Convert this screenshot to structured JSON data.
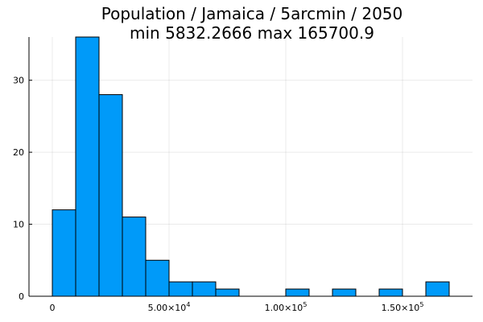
{
  "chart_data": {
    "type": "bar",
    "title": "Population / Jamaica / 5arcmin / 2050",
    "subtitle": "min 5832.2666  max 165700.9",
    "xlabel": "",
    "ylabel": "",
    "bin_width": 10000,
    "bins": [
      {
        "start": 0,
        "end": 10000,
        "count": 12
      },
      {
        "start": 10000,
        "end": 20000,
        "count": 36
      },
      {
        "start": 20000,
        "end": 30000,
        "count": 28
      },
      {
        "start": 30000,
        "end": 40000,
        "count": 11
      },
      {
        "start": 40000,
        "end": 50000,
        "count": 5
      },
      {
        "start": 50000,
        "end": 60000,
        "count": 2
      },
      {
        "start": 60000,
        "end": 70000,
        "count": 2
      },
      {
        "start": 70000,
        "end": 80000,
        "count": 1
      },
      {
        "start": 80000,
        "end": 90000,
        "count": 0
      },
      {
        "start": 90000,
        "end": 100000,
        "count": 0
      },
      {
        "start": 100000,
        "end": 110000,
        "count": 1
      },
      {
        "start": 110000,
        "end": 120000,
        "count": 0
      },
      {
        "start": 120000,
        "end": 130000,
        "count": 1
      },
      {
        "start": 130000,
        "end": 140000,
        "count": 0
      },
      {
        "start": 140000,
        "end": 150000,
        "count": 1
      },
      {
        "start": 150000,
        "end": 160000,
        "count": 0
      },
      {
        "start": 160000,
        "end": 170000,
        "count": 2
      }
    ],
    "xlim": [
      -10000,
      180000
    ],
    "ylim": [
      0,
      36
    ],
    "x_ticks": [
      {
        "value": 0,
        "mantissa": "0",
        "exponent": ""
      },
      {
        "value": 50000,
        "mantissa": "5.00×10",
        "exponent": "4"
      },
      {
        "value": 100000,
        "mantissa": "1.00×10",
        "exponent": "5"
      },
      {
        "value": 150000,
        "mantissa": "1.50×10",
        "exponent": "5"
      }
    ],
    "y_ticks": [
      0,
      10,
      20,
      30
    ],
    "grid": true,
    "legend": "none",
    "bar_color": "#009AF9",
    "edge_color": "#000000"
  }
}
